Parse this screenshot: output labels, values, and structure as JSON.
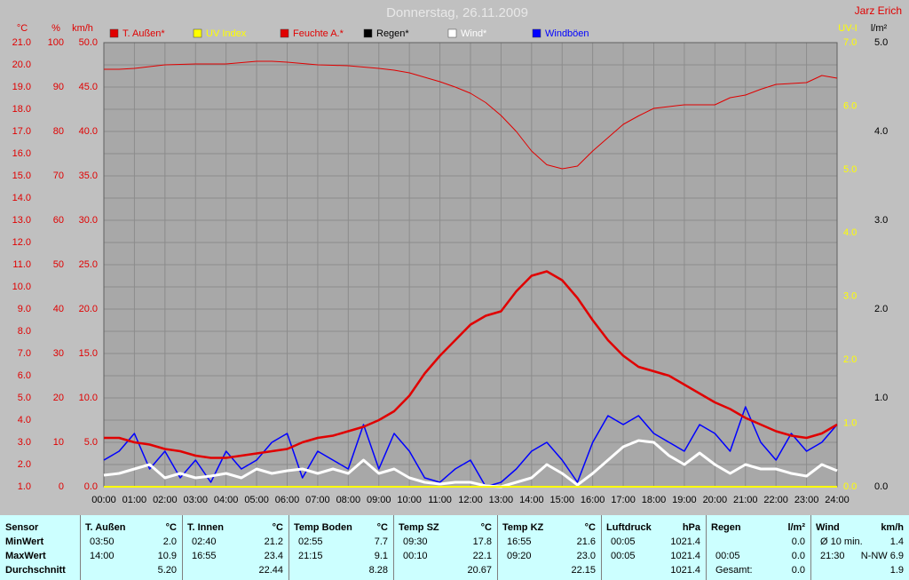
{
  "chart_data": {
    "type": "line",
    "title": "Donnerstag, 26.11.2009",
    "author": "Jarz Erich",
    "x": [
      0,
      0.5,
      1,
      1.5,
      2,
      2.5,
      3,
      3.5,
      4,
      4.5,
      5,
      5.5,
      6,
      6.5,
      7,
      7.5,
      8,
      8.5,
      9,
      9.5,
      10,
      10.5,
      11,
      11.5,
      12,
      12.5,
      13,
      13.5,
      14,
      14.5,
      15,
      15.5,
      16,
      16.5,
      17,
      17.5,
      18,
      18.5,
      19,
      19.5,
      20,
      20.5,
      21,
      21.5,
      22,
      22.5,
      23,
      23.5,
      24
    ],
    "xlim": [
      0,
      24
    ],
    "xticks": [
      {
        "value": 0,
        "label": "00:00"
      },
      {
        "value": 1,
        "label": "01:00"
      },
      {
        "value": 2,
        "label": "02:00"
      },
      {
        "value": 3,
        "label": "03:00"
      },
      {
        "value": 4,
        "label": "04:00"
      },
      {
        "value": 5,
        "label": "05:00"
      },
      {
        "value": 6,
        "label": "06:00"
      },
      {
        "value": 7,
        "label": "07:00"
      },
      {
        "value": 8,
        "label": "08:00"
      },
      {
        "value": 9,
        "label": "09:00"
      },
      {
        "value": 10,
        "label": "10:00"
      },
      {
        "value": 11,
        "label": "11:00"
      },
      {
        "value": 12,
        "label": "12:00"
      },
      {
        "value": 13,
        "label": "13:00"
      },
      {
        "value": 14,
        "label": "14:00"
      },
      {
        "value": 15,
        "label": "15:00"
      },
      {
        "value": 16,
        "label": "16:00"
      },
      {
        "value": 17,
        "label": "17:00"
      },
      {
        "value": 18,
        "label": "18:00"
      },
      {
        "value": 19,
        "label": "19:00"
      },
      {
        "value": 20,
        "label": "20:00"
      },
      {
        "value": 21,
        "label": "21:00"
      },
      {
        "value": 22,
        "label": "22:00"
      },
      {
        "value": 23,
        "label": "23:00"
      },
      {
        "value": 24,
        "label": "24:00"
      }
    ],
    "grid": true,
    "y_axes": [
      {
        "label": "°C",
        "color": "#e00000",
        "ylim": [
          1,
          21
        ],
        "yticks": [
          {
            "value": 1,
            "label": "1.0"
          },
          {
            "value": 2,
            "label": "2.0"
          },
          {
            "value": 3,
            "label": "3.0"
          },
          {
            "value": 4,
            "label": "4.0"
          },
          {
            "value": 5,
            "label": "5.0"
          },
          {
            "value": 6,
            "label": "6.0"
          },
          {
            "value": 7,
            "label": "7.0"
          },
          {
            "value": 8,
            "label": "8.0"
          },
          {
            "value": 9,
            "label": "9.0"
          },
          {
            "value": 10,
            "label": "10.0"
          },
          {
            "value": 11,
            "label": "11.0"
          },
          {
            "value": 12,
            "label": "12.0"
          },
          {
            "value": 13,
            "label": "13.0"
          },
          {
            "value": 14,
            "label": "14.0"
          },
          {
            "value": 15,
            "label": "15.0"
          },
          {
            "value": 16,
            "label": "16.0"
          },
          {
            "value": 17,
            "label": "17.0"
          },
          {
            "value": 18,
            "label": "18.0"
          },
          {
            "value": 19,
            "label": "19.0"
          },
          {
            "value": 20,
            "label": "20.0"
          },
          {
            "value": 21,
            "label": "21.0"
          }
        ]
      },
      {
        "label": "%",
        "color": "#e00000",
        "ylim": [
          0,
          100
        ],
        "yticks": [
          0,
          10,
          20,
          30,
          40,
          50,
          60,
          70,
          80,
          90,
          100
        ]
      },
      {
        "label": "km/h",
        "color": "#e00000",
        "ylim": [
          0,
          50
        ],
        "yticks": [
          {
            "value": 0,
            "label": "0.0"
          },
          {
            "value": 5,
            "label": "5.0"
          },
          {
            "value": 10,
            "label": "10.0"
          },
          {
            "value": 15,
            "label": "15.0"
          },
          {
            "value": 20,
            "label": "20.0"
          },
          {
            "value": 25,
            "label": "25.0"
          },
          {
            "value": 30,
            "label": "30.0"
          },
          {
            "value": 35,
            "label": "35.0"
          },
          {
            "value": 40,
            "label": "40.0"
          },
          {
            "value": 45,
            "label": "45.0"
          },
          {
            "value": 50,
            "label": "50.0"
          }
        ]
      },
      {
        "label": "UV-I",
        "color": "#ffff00",
        "ylim": [
          0,
          7
        ],
        "yticks": [
          {
            "value": 0,
            "label": "0.0"
          },
          {
            "value": 1,
            "label": "1.0"
          },
          {
            "value": 2,
            "label": "2.0"
          },
          {
            "value": 3,
            "label": "3.0"
          },
          {
            "value": 4,
            "label": "4.0"
          },
          {
            "value": 5,
            "label": "5.0"
          },
          {
            "value": 6,
            "label": "6.0"
          },
          {
            "value": 7,
            "label": "7.0"
          }
        ]
      },
      {
        "label": "l/m²",
        "color": "#000000",
        "ylim": [
          0,
          5
        ],
        "yticks": [
          {
            "value": 0,
            "label": "0.0"
          },
          {
            "value": 1,
            "label": "1.0"
          },
          {
            "value": 2,
            "label": "2.0"
          },
          {
            "value": 3,
            "label": "3.0"
          },
          {
            "value": 4,
            "label": "4.0"
          },
          {
            "value": 5,
            "label": "5.0"
          }
        ]
      }
    ],
    "series": [
      {
        "name": "T. Außen*",
        "color": "#e00000",
        "axis": 0,
        "width": 2.5,
        "values": [
          3.2,
          3.2,
          3.0,
          2.9,
          2.7,
          2.6,
          2.4,
          2.3,
          2.3,
          2.4,
          2.5,
          2.6,
          2.7,
          3.0,
          3.2,
          3.3,
          3.5,
          3.7,
          4.0,
          4.4,
          5.1,
          6.1,
          6.9,
          7.6,
          8.3,
          8.7,
          8.9,
          9.8,
          10.5,
          10.7,
          10.3,
          9.5,
          8.5,
          7.6,
          6.9,
          6.4,
          6.2,
          6.0,
          5.6,
          5.2,
          4.8,
          4.5,
          4.1,
          3.8,
          3.5,
          3.3,
          3.2,
          3.4,
          3.8
        ]
      },
      {
        "name": "UV Index",
        "color": "#ffff00",
        "axis": 3,
        "width": 2,
        "values": [
          0,
          0,
          0,
          0,
          0,
          0,
          0,
          0,
          0,
          0,
          0,
          0,
          0,
          0,
          0,
          0,
          0,
          0,
          0,
          0,
          0,
          0,
          0,
          0,
          0,
          0,
          0,
          0,
          0,
          0,
          0,
          0,
          0,
          0,
          0,
          0,
          0,
          0,
          0,
          0,
          0,
          0,
          0,
          0,
          0,
          0,
          0,
          0,
          0
        ]
      },
      {
        "name": "Feuchte A.*",
        "color": "#e00000",
        "axis": 1,
        "width": 1,
        "values": [
          94,
          94,
          94.2,
          94.6,
          95,
          95.1,
          95.2,
          95.2,
          95.2,
          95.5,
          95.8,
          95.8,
          95.6,
          95.3,
          95,
          94.9,
          94.8,
          94.5,
          94.2,
          93.8,
          93.2,
          92.2,
          91.2,
          90,
          88.6,
          86.5,
          83.6,
          80,
          75.6,
          72.5,
          71.6,
          72.2,
          75.6,
          78.6,
          81.6,
          83.5,
          85.2,
          85.6,
          86,
          86,
          86,
          87.6,
          88.2,
          89.5,
          90.6,
          90.8,
          91,
          92.6,
          92
        ]
      },
      {
        "name": "Regen*",
        "color": "#000000",
        "axis": 4,
        "width": 1,
        "values": [
          0,
          0,
          0,
          0,
          0,
          0,
          0,
          0,
          0,
          0,
          0,
          0,
          0,
          0,
          0,
          0,
          0,
          0,
          0,
          0,
          0,
          0,
          0,
          0,
          0,
          0,
          0,
          0,
          0,
          0,
          0,
          0,
          0,
          0,
          0,
          0,
          0,
          0,
          0,
          0,
          0,
          0,
          0,
          0,
          0,
          0,
          0,
          0,
          0
        ]
      },
      {
        "name": "Wind*",
        "color": "#ffffff",
        "axis": 2,
        "width": 3,
        "values": [
          1.3,
          1.5,
          2.0,
          2.5,
          1.0,
          1.5,
          1.0,
          1.2,
          1.5,
          1.0,
          2.0,
          1.5,
          1.8,
          2.0,
          1.5,
          2.0,
          1.5,
          3.0,
          1.5,
          2.0,
          1.0,
          0.5,
          0.3,
          0.5,
          0.5,
          0.1,
          0,
          0.5,
          1.0,
          2.5,
          1.5,
          0.2,
          1.5,
          3.0,
          4.5,
          5.2,
          5.0,
          3.5,
          2.5,
          3.8,
          2.5,
          1.5,
          2.5,
          2.0,
          2.0,
          1.5,
          1.2,
          2.5,
          1.8
        ]
      },
      {
        "name": "Windböen",
        "color": "#0000ff",
        "axis": 2,
        "width": 1.5,
        "values": [
          3,
          4,
          6,
          2,
          4,
          1,
          3,
          0.5,
          4,
          2,
          3,
          5,
          6,
          1,
          4,
          3,
          2,
          7,
          2,
          6,
          4,
          1,
          0.5,
          2,
          3,
          0,
          0.5,
          2,
          4,
          5,
          3,
          0.5,
          5,
          8,
          7,
          8,
          6,
          5,
          4,
          7,
          6,
          4,
          9,
          5,
          3,
          6,
          4,
          5,
          7
        ]
      }
    ]
  },
  "table": {
    "header": "Sensor",
    "row_labels": [
      "MinWert",
      "MaxWert",
      "Durchschnitt"
    ],
    "sensors": [
      {
        "name": "T. Außen",
        "unit": "°C",
        "rows": [
          [
            "03:50",
            "2.0"
          ],
          [
            "14:00",
            "10.9"
          ],
          [
            null,
            "5.20"
          ]
        ]
      },
      {
        "name": "T. Innen",
        "unit": "°C",
        "rows": [
          [
            "02:40",
            "21.2"
          ],
          [
            "16:55",
            "23.4"
          ],
          [
            null,
            "22.44"
          ]
        ]
      },
      {
        "name": "Temp Boden",
        "unit": "°C",
        "rows": [
          [
            "02:55",
            "7.7"
          ],
          [
            "21:15",
            "9.1"
          ],
          [
            null,
            "8.28"
          ]
        ]
      },
      {
        "name": "Temp SZ",
        "unit": "°C",
        "rows": [
          [
            "09:30",
            "17.8"
          ],
          [
            "00:10",
            "22.1"
          ],
          [
            null,
            "20.67"
          ]
        ]
      },
      {
        "name": "Temp KZ",
        "unit": "°C",
        "rows": [
          [
            "16:55",
            "21.6"
          ],
          [
            "09:20",
            "23.0"
          ],
          [
            null,
            "22.15"
          ]
        ]
      },
      {
        "name": "Luftdruck",
        "unit": "hPa",
        "rows": [
          [
            "00:05",
            "1021.4"
          ],
          [
            "00:05",
            "1021.4"
          ],
          [
            null,
            "1021.4"
          ]
        ]
      },
      {
        "name": "Regen",
        "unit": "l/m²",
        "rows": [
          [
            null,
            "0.0"
          ],
          [
            "00:05",
            "0.0"
          ],
          [
            "Gesamt:",
            "0.0"
          ]
        ]
      },
      {
        "name": "Wind",
        "unit": "km/h",
        "rows": [
          [
            "Ø 10 min.",
            "1.4"
          ],
          [
            "21:30",
            "N-NW 6.9"
          ],
          [
            null,
            "1.9"
          ]
        ]
      }
    ]
  }
}
